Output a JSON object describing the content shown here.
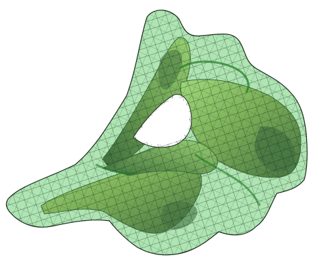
{
  "scene": {
    "background_color": "#ffffff",
    "objects": [
      {
        "name": "vertebra-bone",
        "fill_color": "#9a9a5c",
        "highlight_color": "#e4e89a",
        "shadow_color": "#4a3c3c"
      },
      {
        "name": "mesh-envelope",
        "fill_color": "#3fc24a",
        "fill_opacity": 0.42,
        "grid_color": "#1a1f1a"
      }
    ]
  }
}
